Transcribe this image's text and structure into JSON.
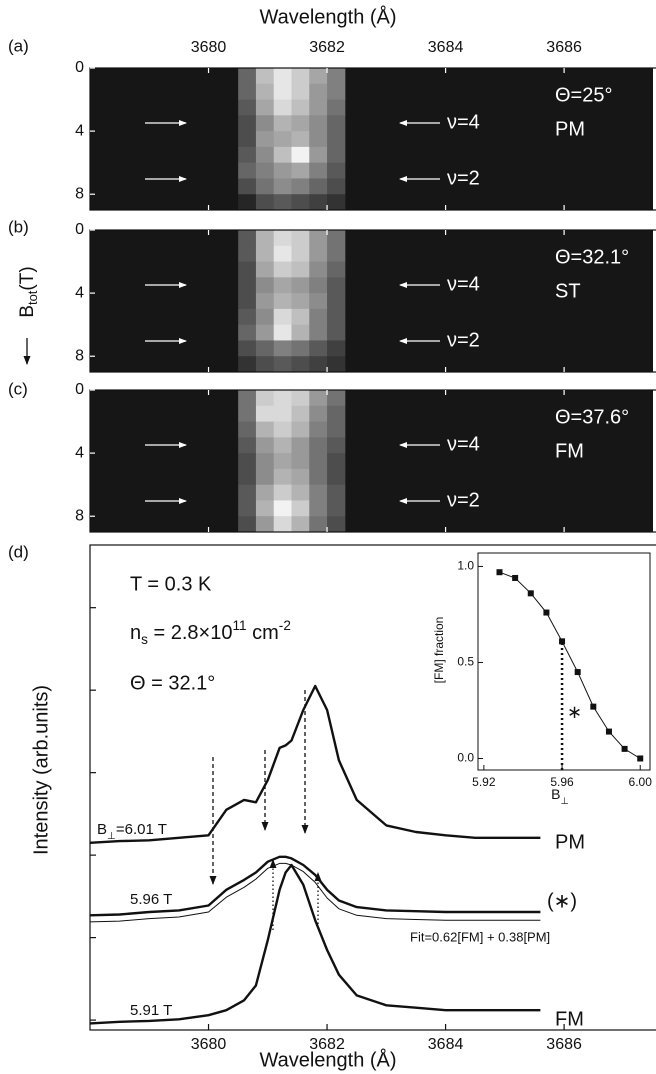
{
  "chart_data": [
    {
      "type": "heatmap",
      "panel_label": "(a)",
      "xlabel": "Wavelength (Å)",
      "xlim": [
        3678,
        3687.5
      ],
      "xticks": [
        3680,
        3682,
        3684,
        3686
      ],
      "ylim": [
        0,
        9
      ],
      "yticks": [
        0,
        4,
        8
      ],
      "colormap": "gray",
      "xbins": [
        3680.5,
        3680.8,
        3681.1,
        3681.4,
        3681.7,
        3682.0,
        3682.3
      ],
      "ybins": [
        0,
        1,
        2,
        3,
        4,
        5,
        6,
        7,
        8,
        9
      ],
      "values": [
        [
          0.4,
          0.75,
          0.9,
          0.8,
          0.65,
          0.5
        ],
        [
          0.4,
          0.7,
          0.9,
          0.8,
          0.6,
          0.5
        ],
        [
          0.35,
          0.65,
          0.85,
          0.75,
          0.6,
          0.45
        ],
        [
          0.3,
          0.55,
          0.7,
          0.65,
          0.55,
          0.4
        ],
        [
          0.3,
          0.6,
          0.65,
          0.7,
          0.55,
          0.4
        ],
        [
          0.35,
          0.55,
          0.75,
          0.95,
          0.6,
          0.4
        ],
        [
          0.4,
          0.5,
          0.6,
          0.65,
          0.5,
          0.35
        ],
        [
          0.3,
          0.45,
          0.55,
          0.5,
          0.4,
          0.3
        ],
        [
          0.15,
          0.3,
          0.35,
          0.3,
          0.25,
          0.2
        ]
      ],
      "annotations": [
        "Θ=25°",
        "PM"
      ],
      "markers": [
        "ν=4",
        "ν=2"
      ]
    },
    {
      "type": "heatmap",
      "panel_label": "(b)",
      "ylabel": [
        {
          "text": "B"
        },
        {
          "sub": "tot"
        },
        {
          "text": "(T)"
        }
      ],
      "xlim": [
        3678,
        3687.5
      ],
      "xticks": [
        3680,
        3682,
        3684,
        3686
      ],
      "ylim": [
        0,
        9
      ],
      "yticks": [
        0,
        4,
        8
      ],
      "colormap": "gray",
      "xbins": [
        3680.5,
        3680.8,
        3681.1,
        3681.4,
        3681.7,
        3682.0,
        3682.3
      ],
      "ybins": [
        0,
        1,
        2,
        3,
        4,
        5,
        6,
        7,
        8,
        9
      ],
      "values": [
        [
          0.35,
          0.7,
          0.85,
          0.8,
          0.6,
          0.45
        ],
        [
          0.35,
          0.7,
          0.9,
          0.8,
          0.6,
          0.45
        ],
        [
          0.3,
          0.65,
          0.8,
          0.75,
          0.55,
          0.4
        ],
        [
          0.3,
          0.55,
          0.65,
          0.6,
          0.5,
          0.35
        ],
        [
          0.3,
          0.6,
          0.7,
          0.65,
          0.55,
          0.35
        ],
        [
          0.35,
          0.55,
          0.85,
          0.75,
          0.5,
          0.35
        ],
        [
          0.4,
          0.6,
          0.9,
          0.7,
          0.5,
          0.35
        ],
        [
          0.3,
          0.4,
          0.5,
          0.45,
          0.35,
          0.25
        ],
        [
          0.2,
          0.3,
          0.35,
          0.3,
          0.25,
          0.2
        ]
      ],
      "annotations": [
        "Θ=32.1°",
        "ST"
      ],
      "markers": [
        "ν=4",
        "ν=2"
      ]
    },
    {
      "type": "heatmap",
      "panel_label": "(c)",
      "xlim": [
        3678,
        3687.5
      ],
      "xticks": [
        3680,
        3682,
        3684,
        3686
      ],
      "ylim": [
        0,
        9
      ],
      "yticks": [
        0,
        4,
        8
      ],
      "colormap": "gray",
      "xbins": [
        3680.5,
        3680.8,
        3681.1,
        3681.4,
        3681.7,
        3682.0,
        3682.3
      ],
      "ybins": [
        0,
        1,
        2,
        3,
        4,
        5,
        6,
        7,
        8,
        9
      ],
      "values": [
        [
          0.45,
          0.8,
          0.85,
          0.8,
          0.6,
          0.45
        ],
        [
          0.45,
          0.85,
          0.85,
          0.75,
          0.55,
          0.4
        ],
        [
          0.4,
          0.7,
          0.8,
          0.7,
          0.5,
          0.4
        ],
        [
          0.35,
          0.6,
          0.7,
          0.6,
          0.45,
          0.35
        ],
        [
          0.3,
          0.55,
          0.65,
          0.6,
          0.45,
          0.3
        ],
        [
          0.3,
          0.55,
          0.7,
          0.65,
          0.45,
          0.3
        ],
        [
          0.35,
          0.65,
          0.8,
          0.7,
          0.5,
          0.35
        ],
        [
          0.35,
          0.7,
          0.95,
          0.8,
          0.5,
          0.35
        ],
        [
          0.3,
          0.6,
          0.85,
          0.7,
          0.45,
          0.3
        ]
      ],
      "annotations": [
        "Θ=37.6°",
        "FM"
      ],
      "markers": [
        "ν=4",
        "ν=2"
      ]
    },
    {
      "type": "line",
      "panel_label": "(d)",
      "xlabel": "Wavelength (Å)",
      "ylabel": "Intensity (arb.units)",
      "xlim": [
        3678,
        3687.5
      ],
      "xticks": [
        3680,
        3682,
        3684,
        3686
      ],
      "ylim": [
        -0.12,
        5.76
      ],
      "yticks": [
        {
          "value": 0,
          "label": null
        },
        {
          "value": 1,
          "label": null
        },
        {
          "value": 2,
          "label": null
        },
        {
          "value": 3,
          "label": null
        },
        {
          "value": 4,
          "label": null
        },
        {
          "value": 5,
          "label": null
        }
      ],
      "annotations": [
        "T = 0.3 K",
        [
          {
            "text": "n"
          },
          {
            "sub": "s"
          },
          {
            "text": " = 2.8×10"
          },
          {
            "sup": "11"
          },
          {
            "text": " cm"
          },
          {
            "sup": "-2"
          }
        ],
        "Θ = 32.1°"
      ],
      "x": [
        3678.0,
        3678.5,
        3679.0,
        3679.5,
        3680.0,
        3680.3,
        3680.6,
        3680.8,
        3681.0,
        3681.2,
        3681.3,
        3681.4,
        3681.6,
        3681.8,
        3682.0,
        3682.2,
        3682.5,
        3683.0,
        3683.5,
        3684.0,
        3684.5,
        3685.0,
        3685.6
      ],
      "series": [
        {
          "name": "PM",
          "field_label": [
            {
              "text": "B"
            },
            {
              "sub": "⊥"
            },
            {
              "text": "=6.01 T"
            }
          ],
          "color": "#111111",
          "line_width": 2.4,
          "values": [
            2.15,
            2.17,
            2.18,
            2.21,
            2.24,
            2.55,
            2.67,
            2.64,
            2.91,
            3.3,
            3.33,
            3.39,
            3.76,
            4.05,
            3.76,
            3.15,
            2.67,
            2.36,
            2.28,
            2.24,
            2.21,
            2.21,
            2.21
          ]
        },
        {
          "name": "(∗)",
          "field_label": "5.96 T",
          "color": "#111111",
          "line_width": 2.4,
          "values": [
            1.27,
            1.28,
            1.31,
            1.33,
            1.39,
            1.58,
            1.7,
            1.79,
            1.92,
            1.98,
            1.98,
            1.96,
            1.88,
            1.76,
            1.58,
            1.45,
            1.37,
            1.33,
            1.32,
            1.31,
            1.31,
            1.31,
            1.31
          ]
        },
        {
          "name": "Fit=0.62[FM] + 0.38[PM]",
          "color": "#111111",
          "line_width": 1,
          "values": [
            1.19,
            1.2,
            1.23,
            1.25,
            1.31,
            1.49,
            1.61,
            1.71,
            1.84,
            1.9,
            1.9,
            1.88,
            1.8,
            1.67,
            1.48,
            1.35,
            1.27,
            1.23,
            1.22,
            1.21,
            1.21,
            1.21,
            1.21
          ]
        },
        {
          "name": "FM",
          "field_label": "5.91 T",
          "color": "#111111",
          "line_width": 2.4,
          "values": [
            -0.04,
            -0.02,
            -0.01,
            0.01,
            0.06,
            0.12,
            0.24,
            0.42,
            0.97,
            1.58,
            1.79,
            1.88,
            1.64,
            1.21,
            0.85,
            0.55,
            0.3,
            0.18,
            0.15,
            0.12,
            0.12,
            0.12,
            0.12
          ]
        }
      ]
    },
    {
      "type": "scatter",
      "ylabel": "[FM] fraction",
      "xlabel": [
        {
          "text": "B"
        },
        {
          "sub": "⊥"
        }
      ],
      "annotation": "∗",
      "color": "#111111",
      "xlim": [
        5.917,
        6.005
      ],
      "xticks": [
        5.92,
        5.96,
        {
          "value": 6,
          "label": "6.00"
        }
      ],
      "ylim": [
        -0.06,
        1.07
      ],
      "yticks": [
        {
          "value": 0,
          "label": "0.0"
        },
        0.5,
        {
          "value": 1,
          "label": "1.0"
        }
      ],
      "x": [
        5.928,
        5.936,
        5.944,
        5.952,
        5.96,
        5.968,
        5.976,
        5.984,
        5.992,
        6.0
      ],
      "values": [
        0.97,
        0.94,
        0.86,
        0.76,
        0.61,
        0.45,
        0.27,
        0.14,
        0.05,
        0.0
      ]
    }
  ]
}
